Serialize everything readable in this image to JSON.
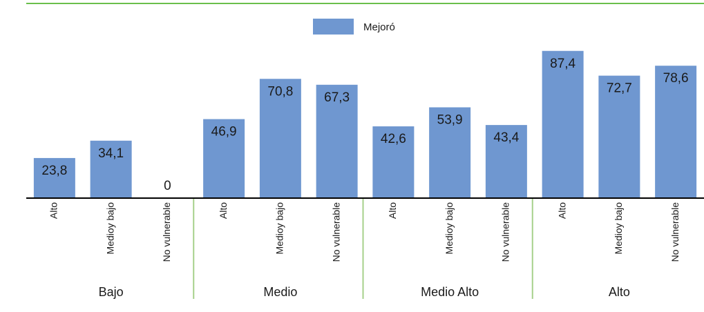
{
  "chart_data": {
    "type": "bar",
    "categories": [
      "Alto",
      "Medioy bajo",
      "No vulnerable",
      "Alto",
      "Medioy bajo",
      "No vulnerable",
      "Alto",
      "Medioy bajo",
      "No vulnerable",
      "Alto",
      "Medioy bajo",
      "No vulnerable"
    ],
    "groups": [
      "Bajo",
      "Medio",
      "Medio Alto",
      "Alto"
    ],
    "series": [
      {
        "name": "Mejoró",
        "color": "#6f97d0",
        "values": [
          23.8,
          34.1,
          0,
          46.9,
          70.8,
          67.3,
          42.6,
          53.9,
          43.4,
          87.4,
          72.7,
          78.6
        ],
        "value_labels": [
          "23,8",
          "34,1",
          "0",
          "46,9",
          "70,8",
          "67,3",
          "42,6",
          "53,9",
          "43,4",
          "87,4",
          "72,7",
          "78,6"
        ]
      }
    ],
    "ylim": [
      0,
      100
    ]
  }
}
